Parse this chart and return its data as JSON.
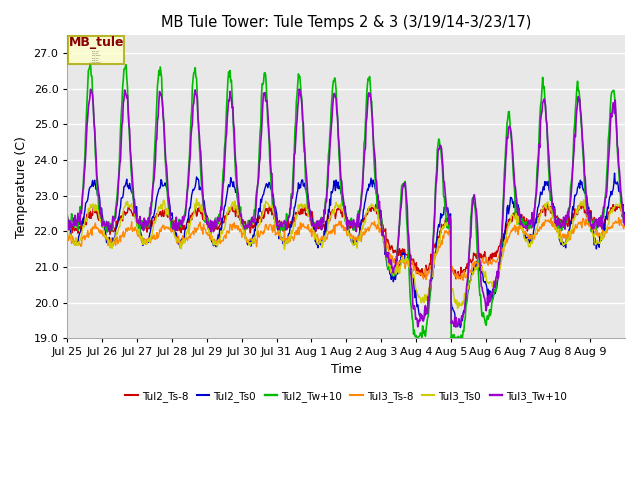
{
  "title": "MB Tule Tower: Tule Temps 2 & 3 (3/19/14-3/23/17)",
  "xlabel": "Time",
  "ylabel": "Temperature (C)",
  "ylim": [
    19.0,
    27.5
  ],
  "yticks": [
    19.0,
    20.0,
    21.0,
    22.0,
    23.0,
    24.0,
    25.0,
    26.0,
    27.0
  ],
  "bg_color": "#e8e8e8",
  "legend_box_label": "MB_tule",
  "legend_box_facecolor": "#ffffcc",
  "legend_box_edgecolor": "#aaa800",
  "legend_box_textcolor": "#880000",
  "series_names": [
    "Tul2_Ts-8",
    "Tul2_Ts0",
    "Tul2_Tw+10",
    "Tul3_Ts-8",
    "Tul3_Ts0",
    "Tul3_Tw+10"
  ],
  "series_colors": [
    "#cc0000",
    "#0000cc",
    "#00bb00",
    "#ff8800",
    "#cccc00",
    "#9900cc"
  ],
  "series_lw": [
    1.0,
    1.0,
    1.2,
    1.0,
    1.0,
    1.2
  ],
  "xtick_labels": [
    "Jul 25",
    "Jul 26",
    "Jul 27",
    "Jul 28",
    "Jul 29",
    "Jul 30",
    "Jul 31",
    "Aug 1",
    "Aug 2",
    "Aug 3",
    "Aug 4",
    "Aug 5",
    "Aug 6",
    "Aug 7",
    "Aug 8",
    "Aug 9"
  ],
  "figsize": [
    6.4,
    4.8
  ],
  "dpi": 100
}
